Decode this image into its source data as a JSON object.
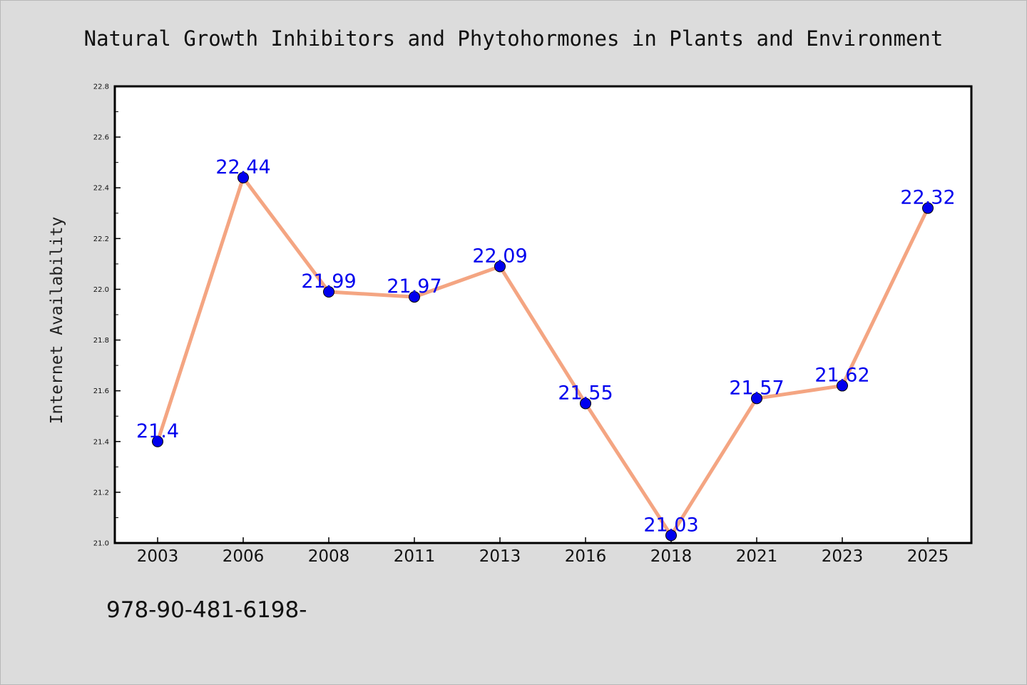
{
  "chart_data": {
    "type": "line",
    "title": "Natural Growth Inhibitors and Phytohormones in Plants and Environment",
    "ylabel": "Internet Availability",
    "xlabel": "",
    "categories": [
      "2003",
      "2006",
      "2008",
      "2011",
      "2013",
      "2016",
      "2018",
      "2021",
      "2023",
      "2025"
    ],
    "series": [
      {
        "values": [
          21.4,
          22.44,
          21.99,
          21.97,
          22.09,
          21.55,
          21.03,
          21.57,
          21.62,
          22.32
        ],
        "data_labels": [
          "21.4",
          "22.44",
          "21.99",
          "21.97",
          "22.09",
          "21.55",
          "21.03",
          "21.57",
          "21.62",
          "22.32"
        ]
      }
    ],
    "ylim": [
      21.0,
      22.8
    ],
    "yticks": [
      "21.0",
      "21.2",
      "21.4",
      "21.6",
      "21.8",
      "22.0",
      "22.2",
      "22.4",
      "22.6",
      "22.8"
    ],
    "grid": false,
    "line_color": "#f4a582",
    "marker_color": "#0000ee",
    "label_color": "#0000ee"
  },
  "footer": {
    "code": "978-90-481-6198-"
  }
}
